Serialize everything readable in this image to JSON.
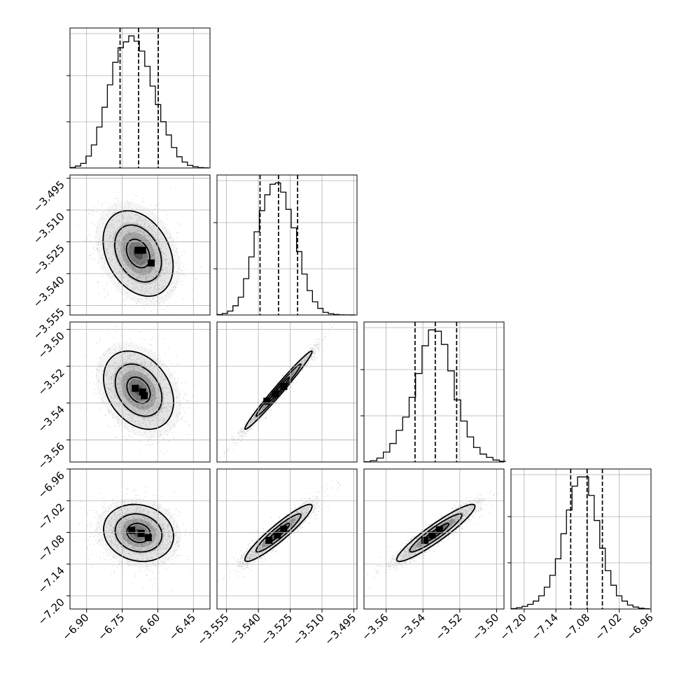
{
  "chart_data": {
    "type": "corner",
    "parameters": [
      "",
      "",
      "",
      ""
    ],
    "colors": {
      "line": "#000000",
      "grid": "#b0b0b0",
      "scatter": "#808080",
      "axes": "#000000"
    },
    "grid": true,
    "quantiles": [
      0.16,
      0.5,
      0.84
    ],
    "limits": [
      [
        -6.97,
        -6.38
      ],
      [
        -3.5595,
        -3.4935
      ],
      [
        -3.572,
        -3.496
      ],
      [
        -7.225,
        -6.96
      ]
    ],
    "ticks": [
      {
        "values": [
          -6.9,
          -6.75,
          -6.6,
          -6.45
        ],
        "labels": [
          "−6.90",
          "−6.75",
          "−6.60",
          "−6.45"
        ]
      },
      {
        "values": [
          -3.555,
          -3.54,
          -3.525,
          -3.51,
          -3.495
        ],
        "labels": [
          "−3.555",
          "−3.540",
          "−3.525",
          "−3.510",
          "−3.495"
        ]
      },
      {
        "values": [
          -3.56,
          -3.54,
          -3.52,
          -3.5
        ],
        "labels": [
          "−3.56",
          "−3.54",
          "−3.52",
          "−3.50"
        ]
      },
      {
        "values": [
          -7.2,
          -7.14,
          -7.08,
          -7.02,
          -6.96
        ],
        "labels": [
          "−7.20",
          "−7.14",
          "−7.08",
          "−7.02",
          "−6.96"
        ]
      }
    ],
    "marginals": [
      {
        "param": 0,
        "quantile_values": [
          -6.759,
          -6.681,
          -6.598
        ],
        "bin_edges": [
          -6.97,
          -6.9475,
          -6.925,
          -6.9025,
          -6.88,
          -6.8575,
          -6.835,
          -6.8125,
          -6.79,
          -6.7675,
          -6.745,
          -6.7225,
          -6.7,
          -6.6775,
          -6.655,
          -6.6325,
          -6.61,
          -6.5875,
          -6.565,
          -6.5425,
          -6.52,
          -6.4975,
          -6.475,
          -6.4525,
          -6.43,
          -6.4075,
          -6.385
        ],
        "counts": [
          0.4,
          1.5,
          3.5,
          9,
          17.5,
          31,
          46,
          63,
          80,
          91,
          95.5,
          100,
          96,
          88.5,
          77,
          62,
          48,
          35,
          25,
          15.5,
          8.5,
          4.5,
          2,
          1,
          0.3,
          0.1
        ],
        "y_ticks": [
          0.33,
          0.66
        ]
      },
      {
        "param": 1,
        "quantile_values": [
          -3.5392,
          -3.5305,
          -3.5215
        ],
        "bin_edges": [
          -3.5595,
          -3.557,
          -3.5545,
          -3.552,
          -3.5495,
          -3.547,
          -3.5445,
          -3.542,
          -3.5395,
          -3.537,
          -3.5345,
          -3.532,
          -3.5295,
          -3.527,
          -3.5245,
          -3.522,
          -3.5195,
          -3.517,
          -3.5145,
          -3.512,
          -3.5095,
          -3.507,
          -3.5045,
          -3.502,
          -3.4995,
          -3.497,
          -3.4945
        ],
        "counts": [
          0.3,
          1.2,
          3,
          7,
          13.5,
          27.5,
          44,
          63,
          79,
          91,
          99,
          100,
          93,
          80,
          66,
          48,
          31,
          18.5,
          10,
          5,
          2,
          1,
          0.4,
          0.1,
          0.05,
          0.02
        ],
        "y_ticks": [
          0.33,
          0.66
        ]
      },
      {
        "param": 2,
        "quantile_values": [
          -3.5443,
          -3.5333,
          -3.5217
        ],
        "bin_edges": [
          -3.572,
          -3.5685,
          -3.565,
          -3.5615,
          -3.558,
          -3.5545,
          -3.551,
          -3.5475,
          -3.544,
          -3.5405,
          -3.537,
          -3.5335,
          -3.53,
          -3.5265,
          -3.523,
          -3.5195,
          -3.516,
          -3.5125,
          -3.509,
          -3.5055,
          -3.502,
          -3.4985,
          -3.495
        ],
        "counts": [
          0.2,
          1,
          3,
          7.5,
          14,
          24,
          34,
          49,
          67,
          88,
          100,
          99,
          89,
          69,
          47,
          31,
          19,
          11,
          6,
          3.5,
          1.5,
          0.5
        ],
        "y_ticks": [
          0.33,
          0.66
        ]
      },
      {
        "param": 3,
        "quantile_values": [
          -7.112,
          -7.081,
          -7.052
        ],
        "bin_edges": [
          -7.225,
          -7.2145,
          -7.204,
          -7.1935,
          -7.183,
          -7.1725,
          -7.162,
          -7.1515,
          -7.141,
          -7.1305,
          -7.12,
          -7.1095,
          -7.099,
          -7.0885,
          -7.078,
          -7.0675,
          -7.057,
          -7.0465,
          -7.036,
          -7.0255,
          -7.015,
          -7.0045,
          -6.994,
          -6.9835,
          -6.973,
          -6.9625
        ],
        "counts": [
          0.3,
          1,
          2,
          3.5,
          6,
          10,
          16.5,
          25.5,
          38,
          57,
          75,
          93,
          100,
          100,
          86,
          67,
          46,
          29,
          18,
          10,
          6,
          3,
          1.5,
          0.6,
          0.2
        ],
        "y_ticks": [
          0.33,
          0.66
        ]
      }
    ],
    "joints": [
      {
        "x": 0,
        "y": 1,
        "mean": [
          -6.683,
          -3.5305
        ],
        "std": [
          0.082,
          0.0112
        ],
        "rho": -0.3,
        "levels": [
          0.6,
          1.2,
          1.8
        ],
        "cores": [
          [
            -6.664,
            -3.529
          ],
          [
            -6.628,
            -3.535
          ],
          [
            -6.683,
            -3.529
          ]
        ]
      },
      {
        "x": 0,
        "y": 2,
        "mean": [
          -6.681,
          -3.533
        ],
        "std": [
          0.082,
          0.0118
        ],
        "rho": -0.3,
        "levels": [
          0.6,
          1.2,
          1.8
        ],
        "cores": [
          [
            -6.664,
            -3.534
          ],
          [
            -6.657,
            -3.536
          ],
          [
            -6.695,
            -3.532
          ]
        ]
      },
      {
        "x": 0,
        "y": 3,
        "mean": [
          -6.681,
          -7.081
        ],
        "std": [
          0.082,
          0.03
        ],
        "rho": -0.12,
        "levels": [
          0.6,
          1.2,
          1.8
        ],
        "cores": [
          [
            -6.67,
            -7.082
          ],
          [
            -6.64,
            -7.09
          ],
          [
            -6.71,
            -7.076
          ]
        ]
      },
      {
        "x": 1,
        "y": 2,
        "mean": [
          -3.5305,
          -3.533
        ],
        "std": [
          0.0088,
          0.0118
        ],
        "rho": 0.985,
        "levels": [
          0.6,
          1.2,
          1.8
        ],
        "cores": [
          [
            -3.532,
            -3.535
          ],
          [
            -3.528,
            -3.531
          ],
          [
            -3.536,
            -3.539
          ]
        ]
      },
      {
        "x": 1,
        "y": 3,
        "mean": [
          -3.5305,
          -7.081
        ],
        "std": [
          0.0088,
          0.03
        ],
        "rho": 0.93,
        "levels": [
          0.6,
          1.2,
          1.8
        ],
        "cores": [
          [
            -3.531,
            -7.085
          ],
          [
            -3.528,
            -7.074
          ],
          [
            -3.535,
            -7.095
          ]
        ]
      },
      {
        "x": 2,
        "y": 3,
        "mean": [
          -3.533,
          -7.081
        ],
        "std": [
          0.0118,
          0.03
        ],
        "rho": 0.93,
        "levels": [
          0.6,
          1.2,
          1.8
        ],
        "cores": [
          [
            -3.535,
            -7.085
          ],
          [
            -3.531,
            -7.075
          ],
          [
            -3.539,
            -7.095
          ]
        ]
      }
    ]
  }
}
